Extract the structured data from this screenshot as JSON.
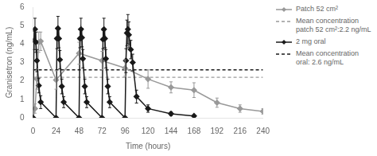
{
  "chart_data": {
    "type": "line",
    "xlabel": "Time (hours)",
    "ylabel": "Granisetron (ng/mL)",
    "xlim": [
      0,
      240
    ],
    "ylim": [
      0,
      6
    ],
    "xticks": [
      0,
      24,
      48,
      72,
      96,
      120,
      144,
      168,
      192,
      216,
      240
    ],
    "yticks": [
      0,
      1,
      2,
      3,
      4,
      5,
      6
    ],
    "grid": false,
    "legend": "right",
    "series": [
      {
        "name": "Patch 52 cm²",
        "color": "#999999",
        "marker": "diamond",
        "line_style": "solid",
        "x": [
          0,
          2,
          4,
          6,
          8,
          24,
          48,
          72,
          96,
          120,
          144,
          168,
          192,
          216,
          240
        ],
        "values": [
          0.0,
          0.5,
          2.1,
          4.1,
          4.15,
          2.05,
          3.5,
          3.1,
          2.7,
          2.1,
          1.65,
          1.5,
          0.82,
          0.5,
          0.35
        ],
        "yerr": [
          0,
          0.25,
          0.55,
          0.55,
          0.5,
          0.5,
          0.6,
          0.5,
          0.45,
          0.5,
          0.3,
          0.4,
          0.25,
          0.2,
          0.15
        ]
      },
      {
        "name": "Mean concentration\npatch 52 cm²:2.2 ng/mL",
        "type": "hline",
        "color": "#999999",
        "line_style": "dashed",
        "values": [
          2.2
        ]
      },
      {
        "name": "2 mg oral",
        "color": "#1a1a1a",
        "marker": "diamond",
        "line_style": "solid",
        "x": [
          0,
          1,
          2,
          3,
          4,
          6,
          8,
          24,
          25,
          26,
          27,
          28,
          30,
          32,
          48,
          49,
          50,
          51,
          52,
          54,
          56,
          72,
          73,
          74,
          75,
          76,
          78,
          80,
          96,
          97,
          98,
          99,
          100,
          102,
          104,
          108,
          120,
          144,
          168
        ],
        "values": [
          0.0,
          4.2,
          4.8,
          4.1,
          3.1,
          1.75,
          0.85,
          0.0,
          4.3,
          4.85,
          4.3,
          3.15,
          1.7,
          0.85,
          0.0,
          4.3,
          4.8,
          4.35,
          3.2,
          1.7,
          0.85,
          0.0,
          4.25,
          4.8,
          4.3,
          3.2,
          1.7,
          0.85,
          0.0,
          3.1,
          4.6,
          4.8,
          4.5,
          3.7,
          3.0,
          1.15,
          0.5,
          0.22,
          0.1
        ],
        "yerr": [
          0,
          0.5,
          0.6,
          0.55,
          0.6,
          0.4,
          0.35,
          0,
          0.55,
          0.65,
          0.5,
          0.5,
          0.4,
          0.3,
          0,
          0.5,
          0.6,
          0.5,
          0.5,
          0.4,
          0.3,
          0,
          0.5,
          0.6,
          0.5,
          0.5,
          0.4,
          0.3,
          0,
          0.65,
          0.7,
          0.8,
          0.7,
          0.5,
          0.45,
          0.35,
          0.2,
          0.1,
          0.05
        ]
      },
      {
        "name": "Mean concentration\noral: 2.6 ng/mL",
        "type": "hline",
        "color": "#1a1a1a",
        "line_style": "dashed",
        "values": [
          2.6
        ]
      }
    ]
  }
}
